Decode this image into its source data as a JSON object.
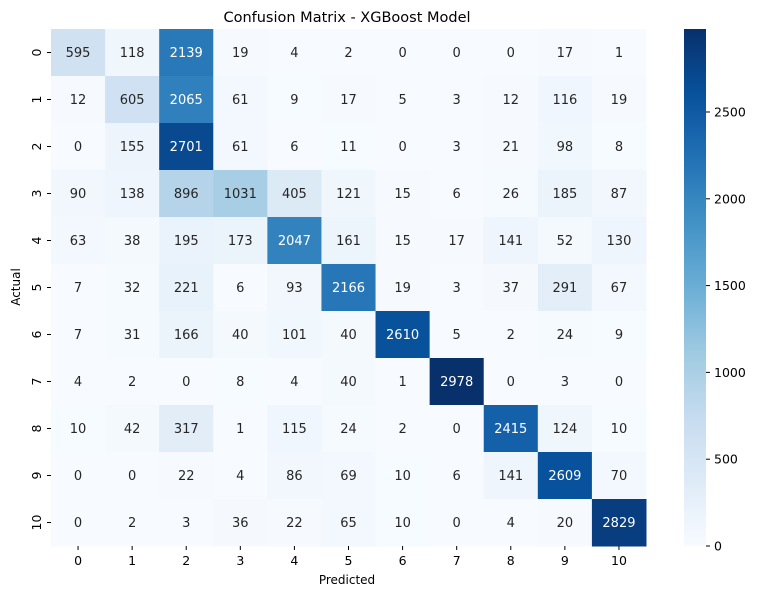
{
  "chart_data": {
    "type": "heatmap",
    "title": "Confusion Matrix - XGBoost Model",
    "xlabel": "Predicted",
    "ylabel": "Actual",
    "x_categories": [
      "0",
      "1",
      "2",
      "3",
      "4",
      "5",
      "6",
      "7",
      "8",
      "9",
      "10"
    ],
    "y_categories": [
      "0",
      "1",
      "2",
      "3",
      "4",
      "5",
      "6",
      "7",
      "8",
      "9",
      "10"
    ],
    "values": [
      [
        595,
        118,
        2139,
        19,
        4,
        2,
        0,
        0,
        0,
        17,
        1
      ],
      [
        12,
        605,
        2065,
        61,
        9,
        17,
        5,
        3,
        12,
        116,
        19
      ],
      [
        0,
        155,
        2701,
        61,
        6,
        11,
        0,
        3,
        21,
        98,
        8
      ],
      [
        90,
        138,
        896,
        1031,
        405,
        121,
        15,
        6,
        26,
        185,
        87
      ],
      [
        63,
        38,
        195,
        173,
        2047,
        161,
        15,
        17,
        141,
        52,
        130
      ],
      [
        7,
        32,
        221,
        6,
        93,
        2166,
        19,
        3,
        37,
        291,
        67
      ],
      [
        7,
        31,
        166,
        40,
        101,
        40,
        2610,
        5,
        2,
        24,
        9
      ],
      [
        4,
        2,
        0,
        8,
        4,
        40,
        1,
        2978,
        0,
        3,
        0
      ],
      [
        10,
        42,
        317,
        1,
        115,
        24,
        2,
        0,
        2415,
        124,
        10
      ],
      [
        0,
        0,
        22,
        4,
        86,
        69,
        10,
        6,
        141,
        2609,
        70
      ],
      [
        0,
        2,
        3,
        36,
        22,
        65,
        10,
        0,
        4,
        20,
        2829
      ]
    ],
    "colormap": "Blues",
    "colorbar": {
      "range": [
        0,
        2978
      ],
      "ticks": [
        "0",
        "500",
        "1000",
        "1500",
        "2000",
        "2500"
      ]
    }
  }
}
